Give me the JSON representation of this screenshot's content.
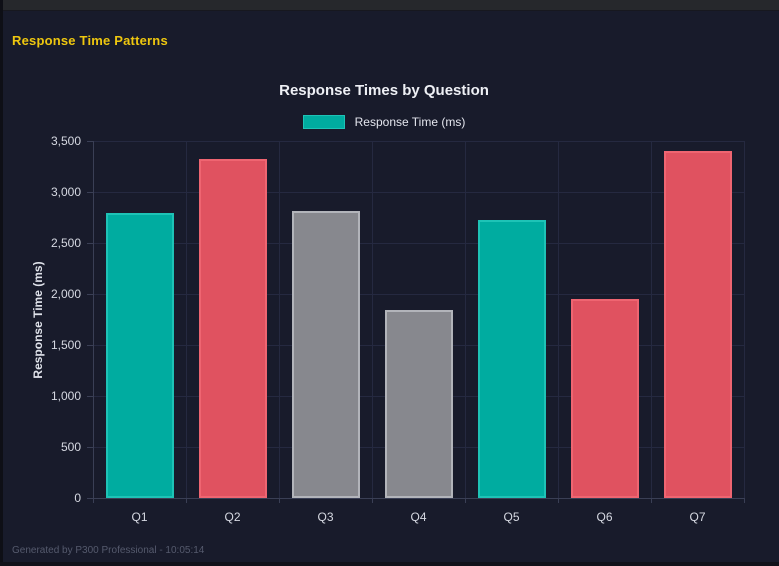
{
  "page": {
    "title": "Response Time Patterns"
  },
  "chart": {
    "title": "Response Times by Question",
    "legend_label": "Response Time (ms)"
  },
  "chart_data": {
    "type": "bar",
    "title": "Response Times by Question",
    "categories": [
      "Q1",
      "Q2",
      "Q3",
      "Q4",
      "Q5",
      "Q6",
      "Q7"
    ],
    "values": [
      2795,
      3325,
      2815,
      1845,
      2725,
      1950,
      3400
    ],
    "series_name": "Response Time (ms)",
    "bar_color_keys": [
      "teal",
      "red",
      "gray",
      "gray",
      "teal",
      "red",
      "red"
    ],
    "palette": {
      "teal": {
        "fill": "#00aca0",
        "border": "#1ec3b6"
      },
      "red": {
        "fill": "#e05260",
        "border": "#ef6571"
      },
      "gray": {
        "fill": "#87888e",
        "border": "#b2b4ba"
      }
    },
    "xlabel": "",
    "ylabel": "Response Time (ms)",
    "ylim": [
      0,
      3500
    ],
    "ytick_labels": [
      "0",
      "500",
      "1,000",
      "1,500",
      "2,000",
      "2,500",
      "3,000",
      "3,500"
    ],
    "grid": true,
    "legend_position": "top",
    "colors": {
      "background": "#181b2b",
      "gridline": "#252940",
      "accent_teal": "#00aca0",
      "accent_red": "#e05260",
      "accent_gray": "#87888e",
      "title_yellow": "#eec70f"
    }
  },
  "footer": {
    "text": "Generated by P300 Professional - 10:05:14"
  }
}
